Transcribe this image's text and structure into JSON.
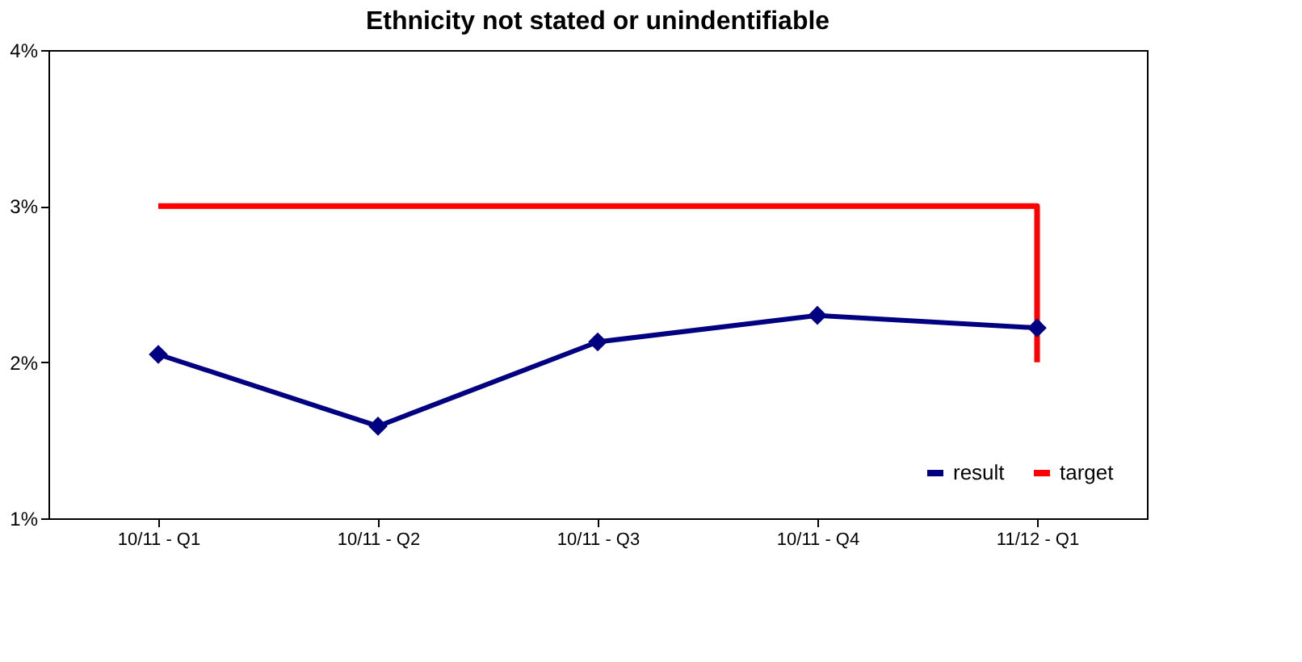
{
  "chart_data": {
    "type": "line",
    "title": "Ethnicity not stated or unindentifiable",
    "categories": [
      "10/11 - Q1",
      "10/11 - Q2",
      "10/11 - Q3",
      "10/11 - Q4",
      "11/12 - Q1"
    ],
    "series": [
      {
        "name": "result",
        "color": "#000080",
        "marker": "diamond",
        "values": [
          2.05,
          1.59,
          2.13,
          2.3,
          2.22
        ]
      },
      {
        "name": "target",
        "type": "step",
        "color": "#ff0000",
        "marker": "none",
        "values": [
          3,
          3,
          3,
          3,
          2
        ]
      }
    ],
    "ylim": [
      1,
      4
    ],
    "yticks": [
      {
        "value": 1,
        "label": "1%"
      },
      {
        "value": 2,
        "label": "2%"
      },
      {
        "value": 3,
        "label": "3%"
      },
      {
        "value": 4,
        "label": "4%"
      }
    ],
    "grid": false,
    "legend": "bottom right"
  }
}
